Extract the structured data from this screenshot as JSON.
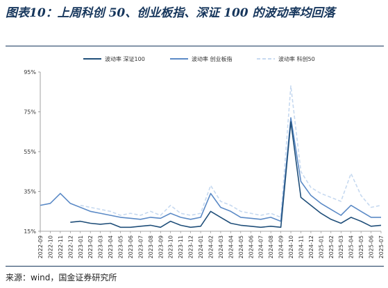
{
  "title": "图表10：上周科创 50、创业板指、深证 100 的波动率均回落",
  "source": "来源：wind，国金证券研究所",
  "chart_data": {
    "type": "line",
    "title": "图表10：上周科创 50、创业板指、深证 100 的波动率均回落",
    "ylabel": "",
    "xlabel": "",
    "ylim": [
      15,
      95
    ],
    "yticks": [
      "15%",
      "35%",
      "55%",
      "75%",
      "95%"
    ],
    "ytick_values": [
      15,
      35,
      55,
      75,
      95
    ],
    "x_categories": [
      "2022-09",
      "2022-10",
      "2022-11",
      "2022-12",
      "2023-01",
      "2023-02",
      "2023-03",
      "2023-04",
      "2023-05",
      "2023-06",
      "2023-07",
      "2023-08",
      "2023-09",
      "2023-10",
      "2023-11",
      "2023-12",
      "2024-01",
      "2024-02",
      "2024-03",
      "2024-04",
      "2024-05",
      "2024-06",
      "2024-07",
      "2024-08",
      "2024-09",
      "2024-10",
      "2024-11",
      "2024-12",
      "2025-01",
      "2025-02",
      "2025-03",
      "2025-04",
      "2025-05",
      "2025-06",
      "2025-07"
    ],
    "legend_position": "top",
    "grid": false,
    "series": [
      {
        "name": "波动率 深证100",
        "color": "#1f4e79",
        "dash": "solid",
        "values": [
          null,
          null,
          null,
          19.5,
          20,
          19,
          18.5,
          19,
          17,
          17,
          17.5,
          18,
          17,
          20,
          18,
          17,
          17.5,
          25,
          22,
          19,
          18,
          17.5,
          17,
          17.5,
          17,
          70,
          32,
          28,
          24,
          21,
          19,
          22,
          20,
          17.5,
          18
        ]
      },
      {
        "name": "波动率 创业板指",
        "color": "#5b8ac6",
        "dash": "solid",
        "values": [
          28,
          29,
          34,
          29,
          27,
          25,
          24,
          23,
          22,
          21.5,
          21,
          22,
          21.5,
          24,
          22,
          21,
          22,
          34,
          27,
          25,
          22,
          21.5,
          21,
          22,
          20,
          72,
          40,
          33,
          29,
          26,
          23,
          28,
          25,
          22,
          22
        ]
      },
      {
        "name": "波动率 科创50",
        "color": "#c6d9f0",
        "dash": "dashed",
        "values": [
          null,
          null,
          null,
          null,
          28,
          27,
          26,
          25,
          23,
          24,
          23,
          25,
          23,
          28,
          24,
          23,
          24,
          38,
          30,
          28,
          25,
          24,
          23,
          24,
          22,
          88,
          45,
          37,
          34,
          32,
          30,
          44,
          33,
          27,
          28
        ]
      }
    ]
  }
}
